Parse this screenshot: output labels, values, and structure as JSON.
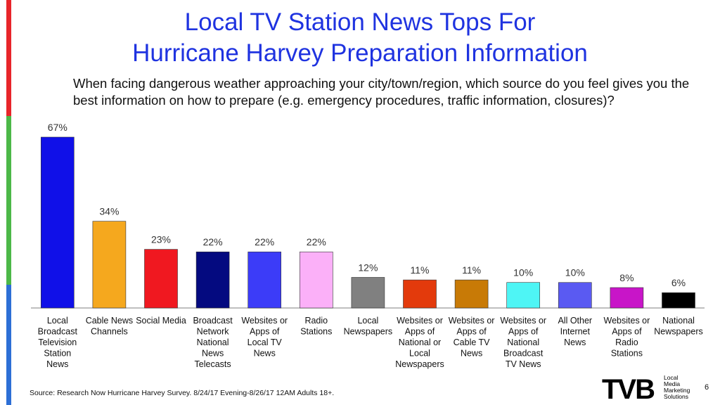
{
  "title_line1": "Local TV Station News Tops For",
  "title_line2": "Hurricane Harvey Preparation Information",
  "subtitle": "When facing dangerous weather approaching your city/town/region, which source do you feel gives you the best information on how to prepare (e.g. emergency procedures, traffic information, closures)?",
  "source": "Source: Research Now Hurricane Harvey Survey. 8/24/17 Evening-8/26/17 12AM Adults 18+.",
  "page_number": "6",
  "logo": {
    "mark": "TVB",
    "tagline": [
      "Local",
      "Media",
      "Marketing",
      "Solutions"
    ]
  },
  "chart_data": {
    "type": "bar",
    "categories": [
      "Local Broadcast Television Station News",
      "Cable News Channels",
      "Social Media",
      "Broadcast Network National News Telecasts",
      "Websites or Apps of Local TV News",
      "Radio Stations",
      "Local Newspapers",
      "Websites or Apps of National or Local Newspapers",
      "Websites or Apps of Cable TV News",
      "Websites or Apps of National Broadcast TV News",
      "All Other Internet News",
      "Websites or Apps of Radio Stations",
      "National Newspapers"
    ],
    "category_lines": [
      [
        "Local",
        "Broadcast",
        "Television",
        "Station",
        "News"
      ],
      [
        "Cable News",
        "Channels"
      ],
      [
        "Social Media"
      ],
      [
        "Broadcast",
        "Network",
        "National",
        "News",
        "Telecasts"
      ],
      [
        "Websites or",
        "Apps of",
        "Local TV",
        "News"
      ],
      [
        "Radio",
        "Stations"
      ],
      [
        "Local",
        "Newspapers"
      ],
      [
        "Websites or",
        "Apps of",
        "National or",
        "Local",
        "Newspapers"
      ],
      [
        "Websites or",
        "Apps of",
        "Cable TV",
        "News"
      ],
      [
        "Websites or",
        "Apps of",
        "National",
        "Broadcast",
        "TV News"
      ],
      [
        "All Other",
        "Internet",
        "News"
      ],
      [
        "Websites or",
        "Apps of",
        "Radio",
        "Stations"
      ],
      [
        "National",
        "Newspapers"
      ]
    ],
    "values": [
      67,
      34,
      23,
      22,
      22,
      22,
      12,
      11,
      11,
      10,
      10,
      8,
      6
    ],
    "value_labels": [
      "67%",
      "34%",
      "23%",
      "22%",
      "22%",
      "22%",
      "12%",
      "11%",
      "11%",
      "10%",
      "10%",
      "8%",
      "6%"
    ],
    "colors": [
      "#1010e8",
      "#f5a81e",
      "#f01820",
      "#040a80",
      "#3c3cf8",
      "#fbb0f8",
      "#808080",
      "#e33a0c",
      "#c87a06",
      "#4ef5f5",
      "#5a5af2",
      "#c815c8",
      "#000000"
    ],
    "ylim": [
      0,
      67
    ],
    "grid": false,
    "legend": "none"
  }
}
